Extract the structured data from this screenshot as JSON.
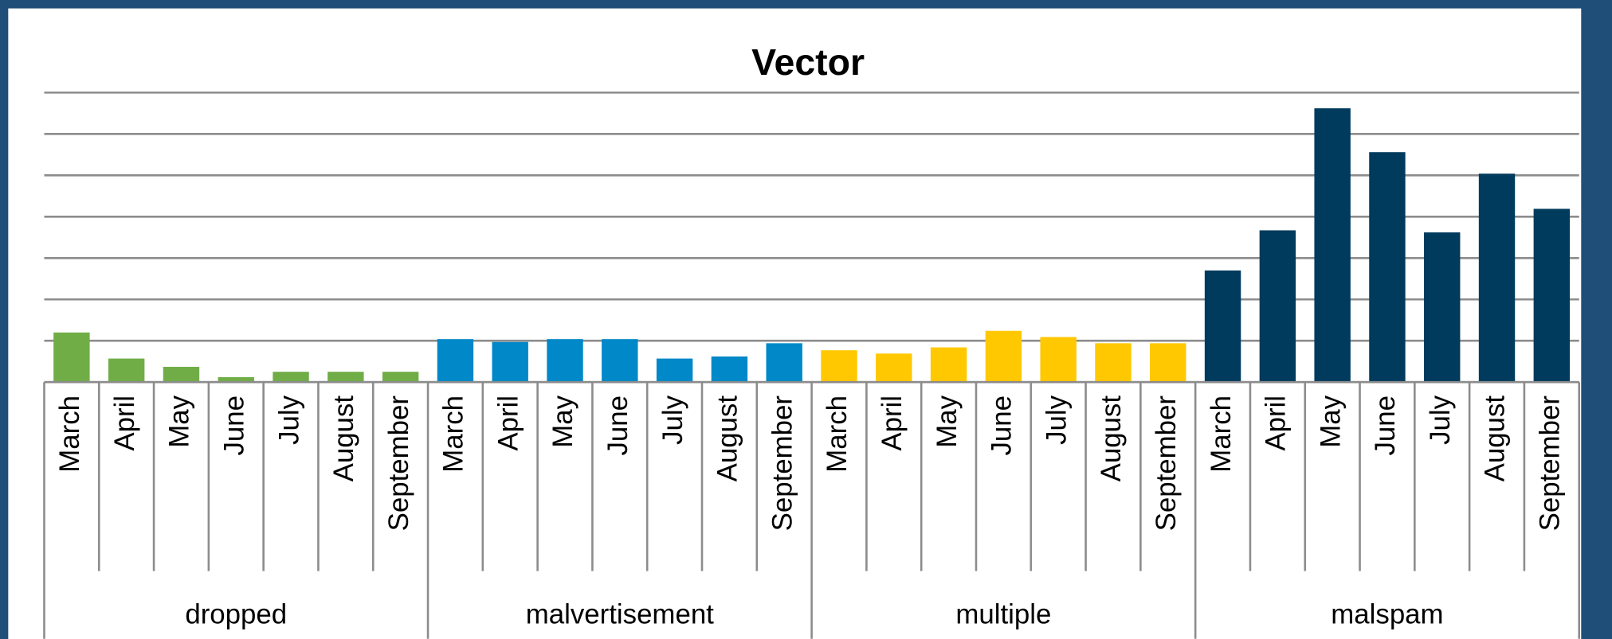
{
  "chart_data": {
    "type": "bar",
    "title": "Vector",
    "categories": [
      "March",
      "April",
      "May",
      "June",
      "July",
      "August",
      "September"
    ],
    "series": [
      {
        "name": "dropped",
        "color": "#70ad47",
        "values": [
          1.2,
          0.57,
          0.37,
          0.12,
          0.25,
          0.25,
          0.25
        ]
      },
      {
        "name": "malvertisement",
        "color": "#0088c8",
        "values": [
          1.04,
          0.97,
          1.04,
          1.04,
          0.57,
          0.62,
          0.94
        ]
      },
      {
        "name": "multiple",
        "color": "#ffc800",
        "values": [
          0.77,
          0.69,
          0.84,
          1.24,
          1.09,
          0.94,
          0.94
        ]
      },
      {
        "name": "malspam",
        "color": "#003a5c",
        "values": [
          2.7,
          3.67,
          6.62,
          5.56,
          3.62,
          5.04,
          4.19
        ]
      }
    ],
    "ylim": [
      0,
      7
    ],
    "yticks": [
      0,
      1,
      2,
      3,
      4,
      5,
      6,
      7
    ],
    "grid": true
  }
}
